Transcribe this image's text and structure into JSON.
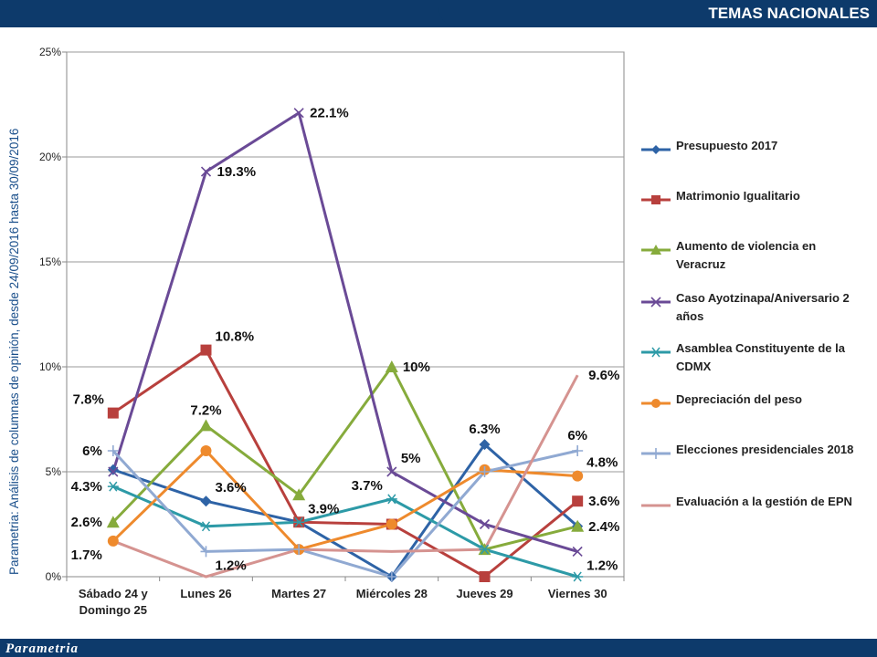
{
  "header": {
    "title": "TEMAS NACIONALES"
  },
  "footer": {
    "brand": "Parametria"
  },
  "side_label": "Parametria: Análisis de columnas de opinión, desde 24/09/2016 hasta  30/09/2016",
  "colors": {
    "header_bg": "#0d3a6b",
    "series": [
      "#2e63a6",
      "#b8403d",
      "#86ab3c",
      "#6a4a96",
      "#2d9aa7",
      "#ee8a2d",
      "#90a9d2",
      "#d59390"
    ]
  },
  "chart_data": {
    "type": "line",
    "categories": [
      "Sábado 24 y Domingo 25",
      "Lunes 26",
      "Martes 27",
      "Miércoles 28",
      "Jueves 29",
      "Viernes 30"
    ],
    "ylim": [
      0,
      25
    ],
    "yticks": [
      "0%",
      "5%",
      "10%",
      "15%",
      "20%",
      "25%"
    ],
    "grid": true,
    "legend_position": "right",
    "series": [
      {
        "name": "Presupuesto 2017",
        "marker": "diamond",
        "values": [
          5.1,
          3.6,
          2.6,
          0,
          6.3,
          2.4
        ]
      },
      {
        "name": "Matrimonio Igualitario",
        "marker": "square",
        "values": [
          7.8,
          10.8,
          2.6,
          2.5,
          0,
          3.6
        ]
      },
      {
        "name": "Aumento de violencia en Veracruz",
        "marker": "triangle",
        "values": [
          2.6,
          7.2,
          3.9,
          10,
          1.3,
          2.4
        ]
      },
      {
        "name": "Caso Ayotzinapa/Aniversario 2 años",
        "marker": "x",
        "values": [
          5.0,
          19.3,
          22.1,
          5,
          2.5,
          1.2
        ]
      },
      {
        "name": "Asamblea Constituyente de la CDMX",
        "marker": "star",
        "values": [
          4.3,
          2.4,
          2.6,
          3.7,
          1.3,
          0
        ]
      },
      {
        "name": "Depreciación del peso",
        "marker": "circle",
        "values": [
          1.7,
          6,
          1.3,
          2.5,
          5.1,
          4.8
        ]
      },
      {
        "name": "Elecciones presidenciales 2018",
        "marker": "plus",
        "values": [
          6,
          1.2,
          1.3,
          0,
          5,
          6
        ]
      },
      {
        "name": "Evaluación a la gestión de EPN",
        "marker": "none",
        "values": [
          1.7,
          0,
          1.3,
          1.2,
          1.3,
          9.6
        ]
      }
    ],
    "data_labels": [
      {
        "text": "7.8%",
        "series": 1,
        "index": 0,
        "pos": "left-above"
      },
      {
        "text": "6%",
        "series": 6,
        "index": 0,
        "pos": "left"
      },
      {
        "text": "4.3%",
        "series": 4,
        "index": 0,
        "pos": "left"
      },
      {
        "text": "2.6%",
        "series": 2,
        "index": 0,
        "pos": "left"
      },
      {
        "text": "1.7%",
        "series": 5,
        "index": 0,
        "pos": "left-below"
      },
      {
        "text": "19.3%",
        "series": 3,
        "index": 1,
        "pos": "right"
      },
      {
        "text": "10.8%",
        "series": 1,
        "index": 1,
        "pos": "right-above"
      },
      {
        "text": "7.2%",
        "series": 2,
        "index": 1,
        "pos": "above"
      },
      {
        "text": "3.6%",
        "series": 0,
        "index": 1,
        "pos": "right-above"
      },
      {
        "text": "1.2%",
        "series": 6,
        "index": 1,
        "pos": "right-below"
      },
      {
        "text": "22.1%",
        "series": 3,
        "index": 2,
        "pos": "right"
      },
      {
        "text": "3.9%",
        "series": 2,
        "index": 2,
        "pos": "right-below"
      },
      {
        "text": "10%",
        "series": 2,
        "index": 3,
        "pos": "right"
      },
      {
        "text": "5%",
        "series": 3,
        "index": 3,
        "pos": "right-above"
      },
      {
        "text": "3.7%",
        "series": 4,
        "index": 3,
        "pos": "left-above"
      },
      {
        "text": "6.3%",
        "series": 0,
        "index": 4,
        "pos": "above"
      },
      {
        "text": "9.6%",
        "series": 7,
        "index": 5,
        "pos": "right"
      },
      {
        "text": "6%",
        "series": 6,
        "index": 5,
        "pos": "above"
      },
      {
        "text": "4.8%",
        "series": 5,
        "index": 5,
        "pos": "right-above"
      },
      {
        "text": "3.6%",
        "series": 1,
        "index": 5,
        "pos": "right"
      },
      {
        "text": "2.4%",
        "series": 2,
        "index": 5,
        "pos": "right"
      },
      {
        "text": "1.2%",
        "series": 3,
        "index": 5,
        "pos": "right-below"
      }
    ]
  }
}
